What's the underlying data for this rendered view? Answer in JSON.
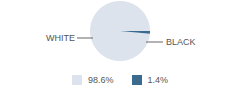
{
  "chart_data": {
    "type": "pie",
    "categories": [
      "WHITE",
      "BLACK"
    ],
    "values": [
      98.6,
      1.4
    ],
    "value_labels": [
      "98.6%",
      "1.4%"
    ],
    "colors": [
      "#dce3ec",
      "#3b6a8f"
    ],
    "legend": "bottom"
  }
}
